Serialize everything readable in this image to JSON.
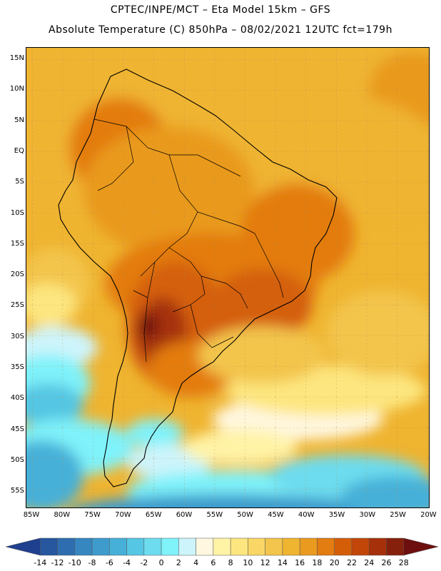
{
  "header": {
    "line1": "CPTEC/INPE/MCT –  Eta Model 15km – GFS",
    "line2": "Absolute Temperature (C) 850hPa – 08/02/2021 12UTC fct=179h"
  },
  "axes": {
    "lat_labels": [
      "15N",
      "10N",
      "5N",
      "EQ",
      "5S",
      "10S",
      "15S",
      "20S",
      "25S",
      "30S",
      "35S",
      "40S",
      "45S",
      "50S",
      "55S"
    ],
    "lon_labels": [
      "85W",
      "80W",
      "75W",
      "70W",
      "65W",
      "60W",
      "55W",
      "50W",
      "45W",
      "40W",
      "35W",
      "30W",
      "25W",
      "20W"
    ]
  },
  "colorbar": {
    "labels": [
      "-14",
      "-12",
      "-10",
      "-8",
      "-6",
      "-4",
      "-2",
      "0",
      "2",
      "4",
      "6",
      "8",
      "10",
      "12",
      "14",
      "16",
      "18",
      "20",
      "22",
      "24",
      "26",
      "28"
    ],
    "colors": [
      "#1f3f8f",
      "#26579f",
      "#2e6eb0",
      "#3686c0",
      "#3e9bcc",
      "#46b0d8",
      "#55c6e3",
      "#6ddcee",
      "#7ff2fa",
      "#cdf4fb",
      "#fff7df",
      "#fff3a6",
      "#fde67f",
      "#f9d665",
      "#f3c54c",
      "#efb430",
      "#e99a1f",
      "#e37c11",
      "#d45e08",
      "#c14608",
      "#a5300a",
      "#85200c",
      "#6d0f0f"
    ]
  }
}
